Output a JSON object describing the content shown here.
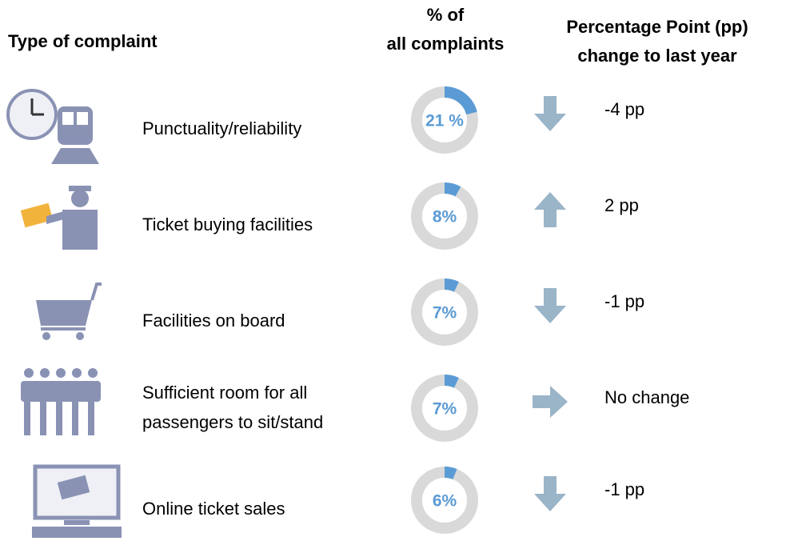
{
  "header": {
    "type_of_complaint": "Type of complaint",
    "share": [
      "% of",
      "all complaints"
    ],
    "change": [
      "Percentage Point (pp)",
      "change to last year"
    ]
  },
  "rows": [
    {
      "label": [
        "Punctuality/reliability"
      ],
      "share": 21,
      "share_label": "21 %",
      "change": "-4 pp",
      "trend": "down"
    },
    {
      "label": [
        "Ticket buying facilities"
      ],
      "share": 8,
      "share_label": "8%",
      "change": "2 pp",
      "trend": "up"
    },
    {
      "label": [
        "Facilities on board"
      ],
      "share": 7,
      "share_label": "7%",
      "change": "-1 pp",
      "trend": "down"
    },
    {
      "label": [
        "Sufficient room for all",
        "passengers to sit/stand"
      ],
      "share": 7,
      "share_label": "7%",
      "change": "No change",
      "trend": "right"
    },
    {
      "label": [
        "Online ticket sales"
      ],
      "share": 6,
      "share_label": "6%",
      "change": "-1 pp",
      "trend": "down"
    }
  ],
  "colors": {
    "ring": "#d9d9d9",
    "share": "#5b9bd5",
    "arrow": "#9ab4c8",
    "icon": "#8a92b4"
  }
}
